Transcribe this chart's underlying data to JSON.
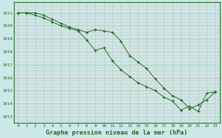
{
  "title": "Graphe pression niveau de la mer (hPa)",
  "bg_color": "#cce8e8",
  "line_color": "#1a6b1a",
  "xlim": [
    -0.5,
    23.5
  ],
  "ylim": [
    1012.5,
    1021.8
  ],
  "yticks": [
    1013,
    1014,
    1015,
    1016,
    1017,
    1018,
    1019,
    1020,
    1021
  ],
  "xticks": [
    0,
    1,
    2,
    3,
    4,
    5,
    6,
    7,
    8,
    9,
    10,
    11,
    12,
    13,
    14,
    15,
    16,
    17,
    18,
    19,
    20,
    21,
    22,
    23
  ],
  "series1": {
    "x": [
      0,
      1,
      2,
      3,
      4,
      5,
      6,
      7,
      8,
      9,
      10,
      11,
      12,
      13,
      14,
      15,
      16,
      17,
      18,
      19,
      20,
      21,
      22,
      23
    ],
    "y": [
      1021.0,
      1021.0,
      1021.0,
      1020.8,
      1020.5,
      1020.2,
      1019.9,
      1019.7,
      1019.5,
      1019.7,
      1019.6,
      1019.5,
      1018.8,
      1017.7,
      1017.2,
      1016.7,
      1015.9,
      1015.2,
      1014.6,
      1014.3,
      1013.6,
      1013.9,
      1014.3,
      1014.9
    ]
  },
  "series2": {
    "x": [
      0,
      1,
      2,
      3,
      4,
      5,
      6,
      7,
      8,
      9,
      10,
      11,
      12,
      13,
      14,
      15,
      16,
      17,
      18,
      19,
      20,
      21,
      22,
      23
    ],
    "y": [
      1021.0,
      1021.0,
      1020.8,
      1020.6,
      1020.3,
      1020.0,
      1019.8,
      1019.6,
      1018.9,
      1018.1,
      1018.3,
      1017.3,
      1016.6,
      1016.1,
      1015.6,
      1015.3,
      1015.0,
      1014.5,
      1014.2,
      1013.5,
      1013.8,
      1013.4,
      1014.8,
      1014.9
    ]
  },
  "ylabel_fontsize": 5,
  "xlabel_fontsize": 6.5,
  "tick_fontsize": 4.5
}
